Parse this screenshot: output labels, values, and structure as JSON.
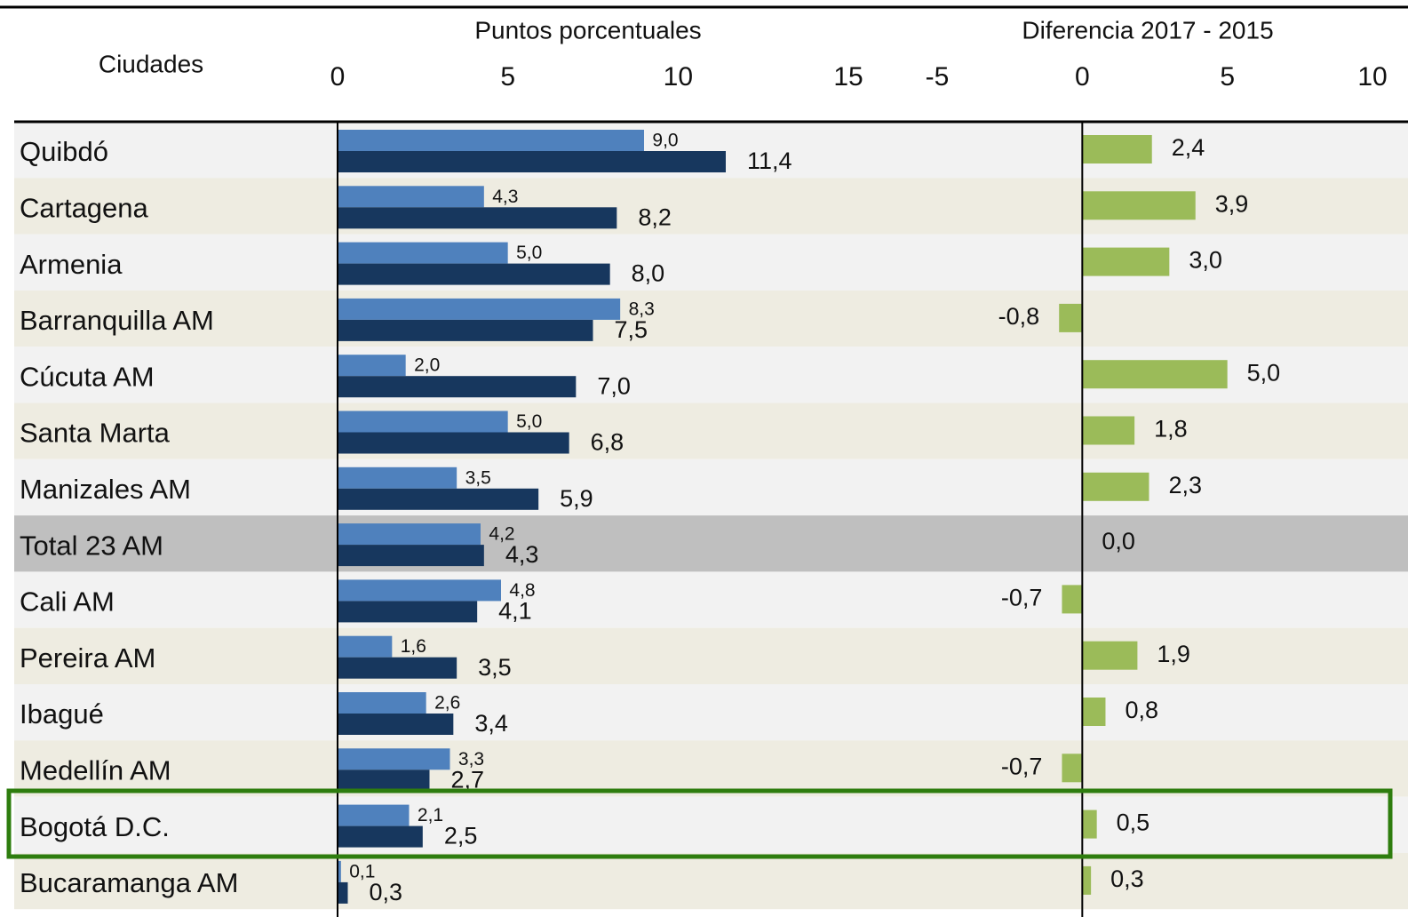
{
  "chart_data": [
    {
      "type": "bar",
      "orientation": "horizontal",
      "y_label": "Ciudades",
      "x_label": "Puntos porcentuales",
      "categories": [
        "Quibdó",
        "Cartagena",
        "Armenia",
        "Barranquilla AM",
        "Cúcuta AM",
        "Santa Marta",
        "Manizales AM",
        "Total 23 AM",
        "Cali AM",
        "Pereira AM",
        "Ibagué",
        "Medellín AM",
        "Bogotá D.C.",
        "Bucaramanga AM"
      ],
      "series": [
        {
          "color": "#4f81bd",
          "values": [
            9.0,
            4.3,
            5.0,
            8.3,
            2.0,
            5.0,
            3.5,
            4.2,
            4.8,
            1.6,
            2.6,
            3.3,
            2.1,
            0.1
          ],
          "value_labels": [
            "9,0",
            "4,3",
            "5,0",
            "8,3",
            "2,0",
            "5,0",
            "3,5",
            "4,2",
            "4,8",
            "1,6",
            "2,6",
            "3,3",
            "2,1",
            "0,1"
          ]
        },
        {
          "color": "#17375e",
          "values": [
            11.4,
            8.2,
            8.0,
            7.5,
            7.0,
            6.8,
            5.9,
            4.3,
            4.1,
            3.5,
            3.4,
            2.7,
            2.5,
            0.3
          ],
          "value_labels": [
            "11,4",
            "8,2",
            "8,0",
            "7,5",
            "7,0",
            "6,8",
            "5,9",
            "4,3",
            "4,1",
            "3,5",
            "3,4",
            "2,7",
            "2,5",
            "0,3"
          ]
        }
      ],
      "xlim": [
        0,
        15
      ],
      "xticks": [
        0,
        5,
        10,
        15
      ]
    },
    {
      "type": "bar",
      "orientation": "horizontal",
      "x_label": "Diferencia 2017 - 2015",
      "color": "#9bbb59",
      "values": [
        2.4,
        3.9,
        3.0,
        -0.8,
        5.0,
        1.8,
        2.3,
        0.0,
        -0.7,
        1.9,
        0.8,
        -0.7,
        0.5,
        0.3
      ],
      "value_labels": [
        "2,4",
        "3,9",
        "3,0",
        "-0,8",
        "5,0",
        "1,8",
        "2,3",
        "0,0",
        "-0,7",
        "1,9",
        "0,8",
        "-0,7",
        "0,5",
        "0,3"
      ],
      "xlim": [
        -5,
        10
      ],
      "xticks": [
        -5,
        0,
        5,
        10
      ]
    }
  ]
}
